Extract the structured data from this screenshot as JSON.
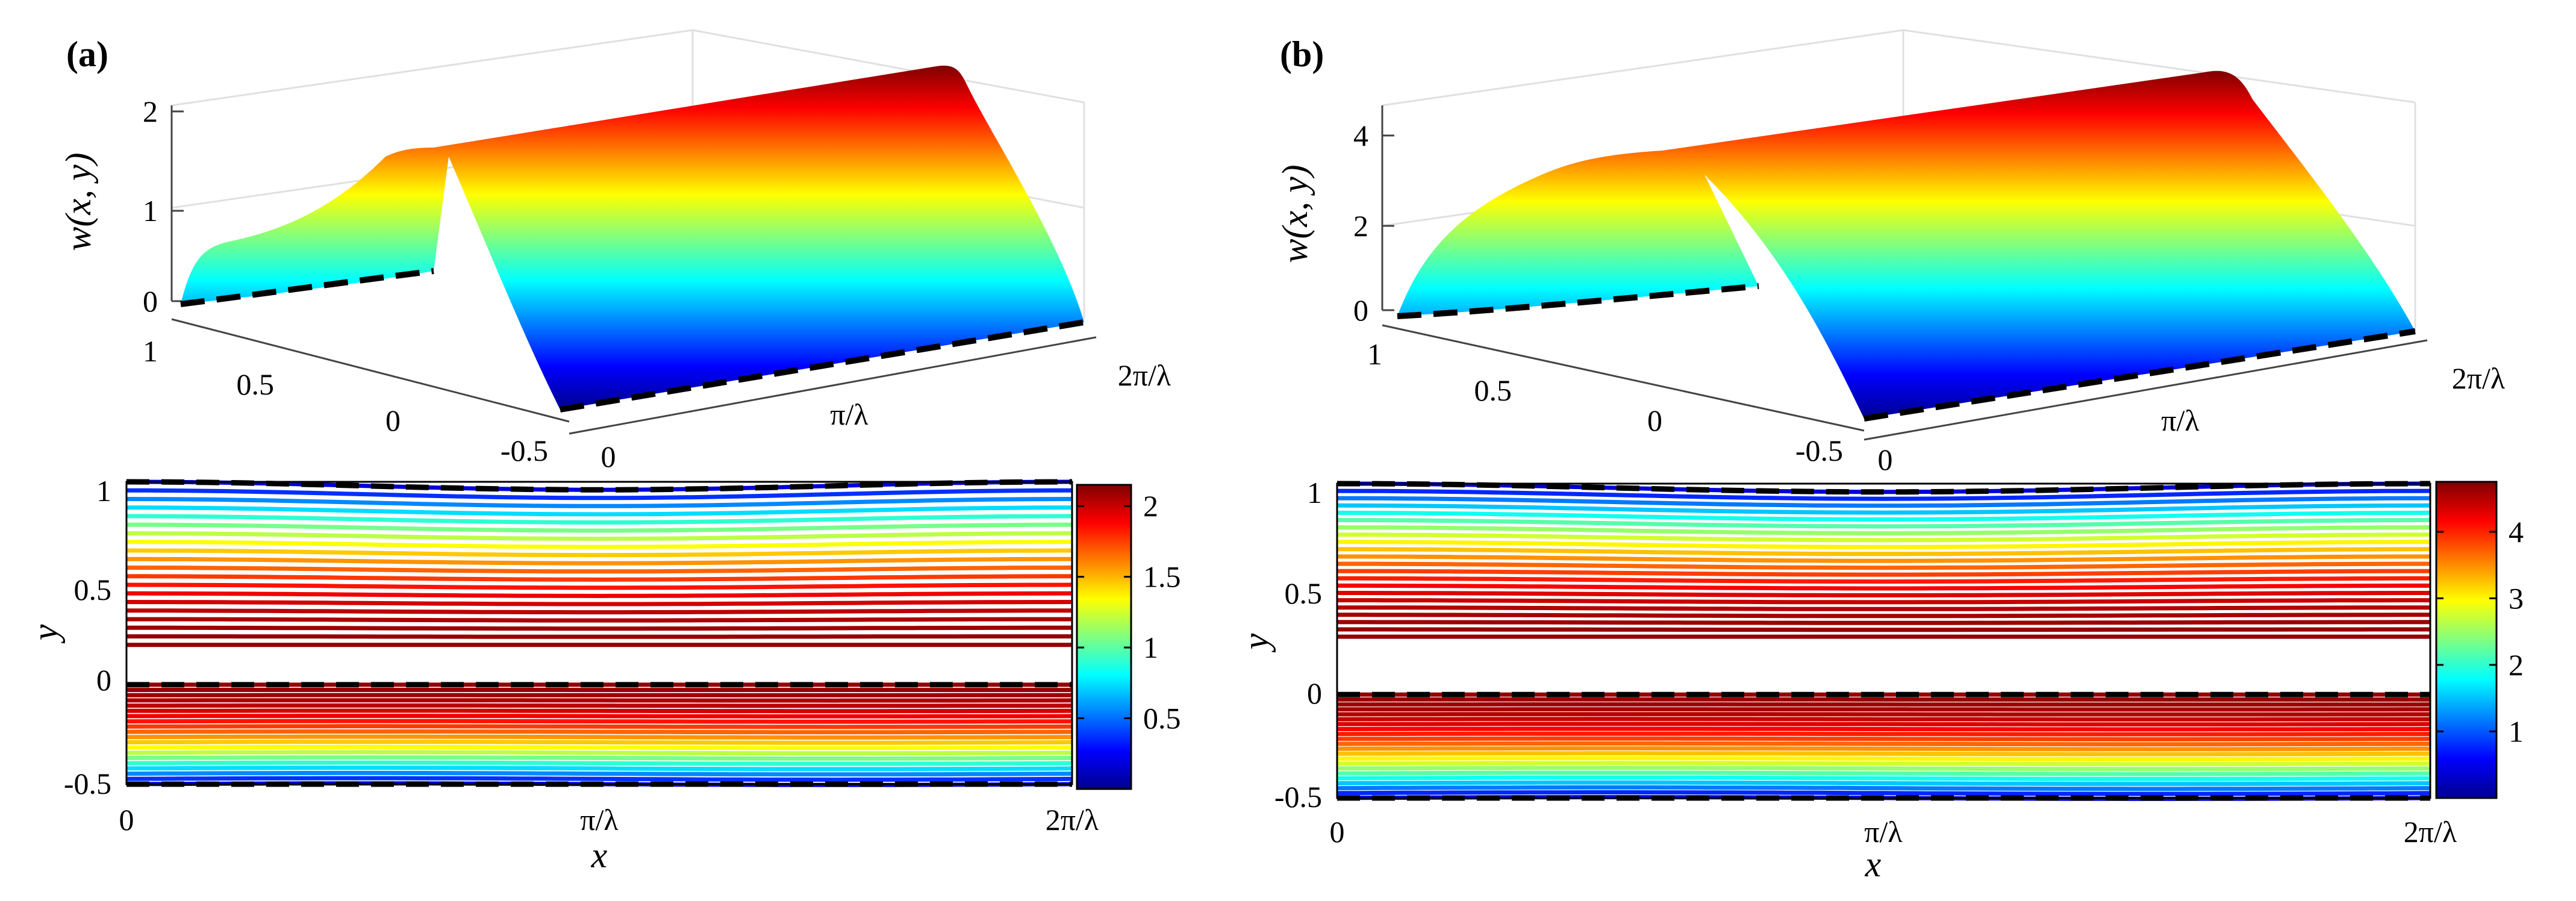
{
  "chart_data": [
    {
      "panel_label": "(a)",
      "type": "surface3d",
      "zlabel": "w(x, y)",
      "z_ticks": [
        "0",
        "1",
        "2"
      ],
      "z_range": [
        0,
        2.15
      ],
      "y_ticks": [
        "1",
        "0.5",
        "0",
        "-0.5"
      ],
      "x_ticks": [
        "0",
        "π/λ",
        "2π/λ"
      ],
      "peak_value": 2.15
    },
    {
      "panel_label": "(b)",
      "type": "surface3d",
      "zlabel": "w(x, y)",
      "z_ticks": [
        "0",
        "2",
        "4"
      ],
      "z_range": [
        0,
        4.75
      ],
      "y_ticks": [
        "1",
        "0.5",
        "0",
        "-0.5"
      ],
      "x_ticks": [
        "0",
        "π/λ",
        "2π/λ"
      ],
      "peak_value": 4.75
    },
    {
      "panel_label": "(a)",
      "type": "contour",
      "xlabel": "x",
      "ylabel": "y",
      "x_ticks": [
        "0",
        "π/λ",
        "2π/λ"
      ],
      "y_ticks": [
        "1",
        "0.5",
        "0",
        "-0.5"
      ],
      "ylim": [
        -0.5,
        1.02
      ],
      "colorbar_ticks": [
        "0.5",
        "1",
        "1.5",
        "2"
      ],
      "colorbar_values": [
        0.5,
        1,
        1.5,
        2
      ],
      "colorbar_range": [
        0,
        2.15
      ],
      "upper_channel": [
        0.2,
        1.0
      ],
      "lower_channel": [
        -0.5,
        0.0
      ],
      "levels": 20
    },
    {
      "panel_label": "(b)",
      "type": "contour",
      "xlabel": "x",
      "ylabel": "y",
      "x_ticks": [
        "0",
        "π/λ",
        "2π/λ"
      ],
      "y_ticks": [
        "1",
        "0.5",
        "0",
        "-0.5"
      ],
      "ylim": [
        -0.5,
        1.02
      ],
      "colorbar_ticks": [
        "1",
        "2",
        "3",
        "4"
      ],
      "colorbar_values": [
        1,
        2,
        3,
        4
      ],
      "colorbar_range": [
        0,
        4.75
      ],
      "upper_channel": [
        0.28,
        1.0
      ],
      "lower_channel": [
        -0.5,
        0.0
      ],
      "levels": 22
    }
  ]
}
